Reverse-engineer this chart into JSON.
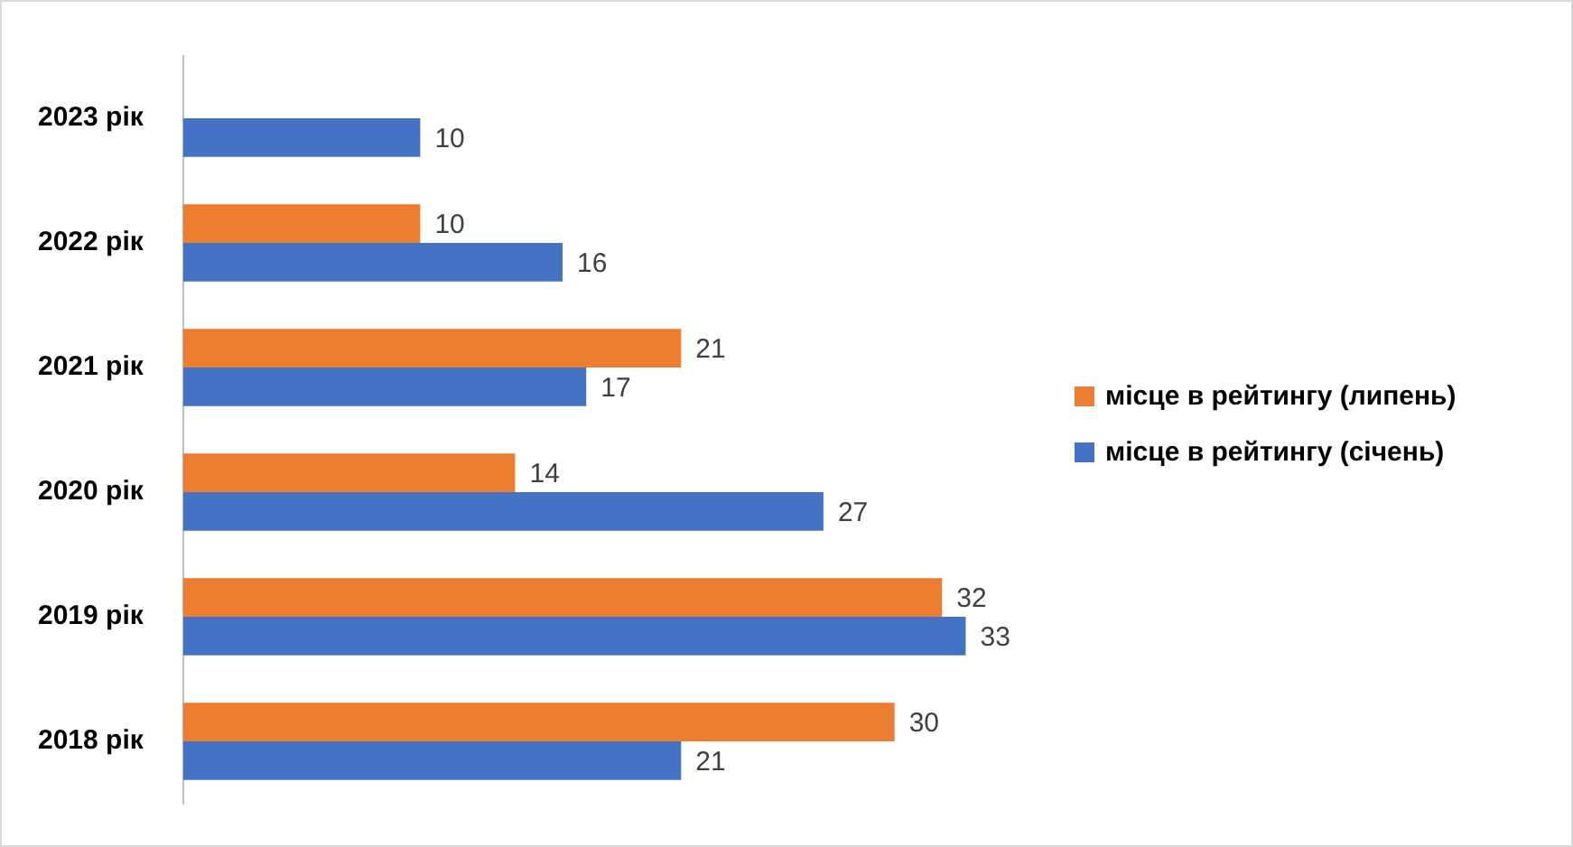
{
  "chart_data": {
    "type": "bar",
    "orientation": "horizontal",
    "categories": [
      "2023 рік",
      "2022 рік",
      "2021 рік",
      "2020 рік",
      "2019 рік",
      "2018 рік"
    ],
    "series": [
      {
        "name": "місце в рейтингу (липень)",
        "color": "#ed7d31",
        "values": [
          null,
          10,
          21,
          14,
          32,
          30
        ]
      },
      {
        "name": "місце в рейтингу (січень)",
        "color": "#4472c4",
        "values": [
          10,
          16,
          17,
          27,
          33,
          21
        ]
      }
    ],
    "data_labels": true,
    "tick_labels": "y",
    "grid": false,
    "legend": "right"
  }
}
